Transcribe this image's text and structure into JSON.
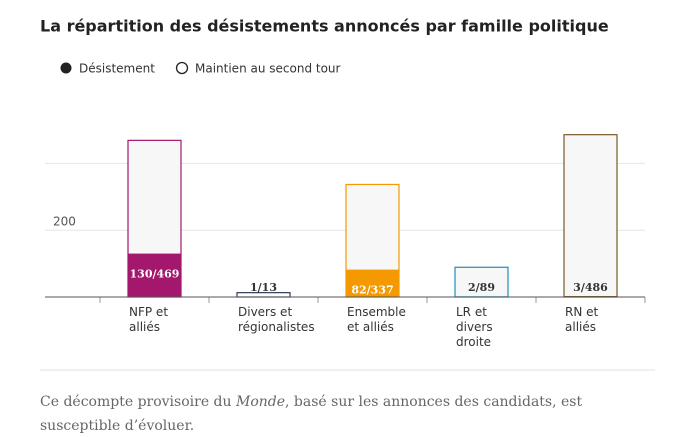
{
  "chart_data": {
    "type": "bar",
    "title": "La répartition des désistements annoncés par famille politique",
    "categories": [
      "NFP et alliés",
      "Divers et régionalistes",
      "Ensemble et alliés",
      "LR et divers droite",
      "RN et alliés"
    ],
    "colors": [
      "#a3176d",
      "#2d3c5c",
      "#f49a00",
      "#1f8fb8",
      "#7a5a28"
    ],
    "series": [
      {
        "name": "Désistement",
        "values": [
          130,
          1,
          82,
          2,
          3
        ],
        "value_labels": [
          "130/469",
          "1/13",
          "82/337",
          "2/89",
          "3/486"
        ]
      },
      {
        "name": "Maintien au second tour",
        "values": [
          469,
          13,
          337,
          89,
          486
        ]
      }
    ],
    "ylim": [
      0,
      500
    ],
    "yticks": [
      200,
      {
        "value": 400,
        "label": null
      }
    ],
    "grid": true,
    "footnote": {
      "before": "Ce décompte provisoire du ",
      "emphasis": "Monde",
      "after": ", basé sur les annonces des candidats, est susceptible d’évoluer."
    }
  }
}
